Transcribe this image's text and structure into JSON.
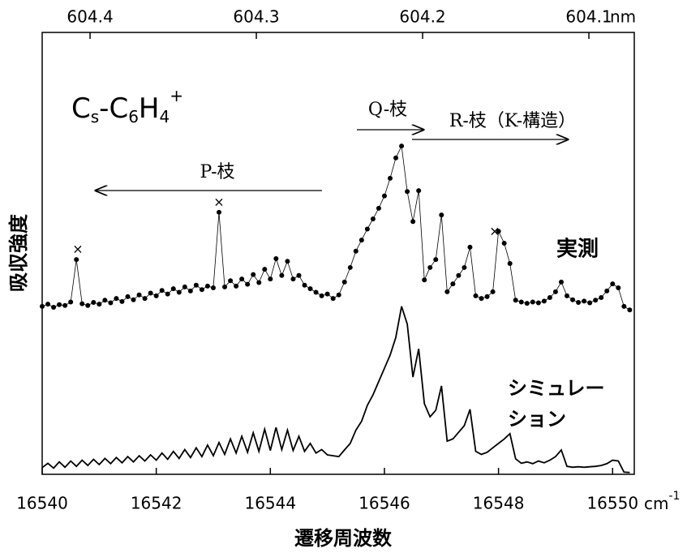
{
  "chart_data": {
    "type": "line",
    "species": [
      "C",
      "s",
      "-C",
      "6",
      "H",
      "4",
      "+"
    ],
    "x_label": "遷移周波数",
    "x_unit": "cm",
    "x_unit_sup": "-1",
    "x2_unit": "nm",
    "y_label": "吸収強度",
    "annotations": [
      "P-枝",
      "Q-枝",
      "R-枝（K-構造）",
      "実測",
      "シミュレー",
      "ション",
      "×"
    ],
    "xlim": [
      16540,
      16550.38
    ],
    "xticks": [
      16540,
      16542,
      16544,
      16546,
      16548,
      16550
    ],
    "x2lim": [
      604.4288,
      604.0727
    ],
    "x2ticks": [
      604.4,
      604.3,
      604.2,
      604.1
    ],
    "ylim": [
      0,
      100
    ],
    "x": [
      16540.0,
      16540.1,
      16540.2,
      16540.3,
      16540.4,
      16540.5,
      16540.6,
      16540.7,
      16540.8,
      16540.9,
      16541.0,
      16541.1,
      16541.2,
      16541.3,
      16541.4,
      16541.5,
      16541.6,
      16541.7,
      16541.8,
      16541.9,
      16542.0,
      16542.1,
      16542.2,
      16542.3,
      16542.4,
      16542.5,
      16542.6,
      16542.7,
      16542.8,
      16542.9,
      16543.0,
      16543.1,
      16543.2,
      16543.3,
      16543.4,
      16543.5,
      16543.6,
      16543.7,
      16543.8,
      16543.9,
      16544.0,
      16544.1,
      16544.2,
      16544.3,
      16544.4,
      16544.5,
      16544.6,
      16544.7,
      16544.8,
      16544.9,
      16545.0,
      16545.1,
      16545.2,
      16545.3,
      16545.4,
      16545.5,
      16545.6,
      16545.7,
      16545.8,
      16545.9,
      16546.0,
      16546.1,
      16546.2,
      16546.3,
      16546.4,
      16546.5,
      16546.6,
      16546.7,
      16546.8,
      16546.9,
      16547.0,
      16547.1,
      16547.2,
      16547.3,
      16547.4,
      16547.5,
      16547.6,
      16547.7,
      16547.8,
      16547.9,
      16548.0,
      16548.1,
      16548.2,
      16548.3,
      16548.4,
      16548.5,
      16548.6,
      16548.7,
      16548.8,
      16548.9,
      16549.0,
      16549.1,
      16549.2,
      16549.3,
      16549.4,
      16549.5,
      16549.6,
      16549.7,
      16549.8,
      16549.9,
      16550.0,
      16550.1,
      16550.2,
      16550.3
    ],
    "series": [
      {
        "color": "#000",
        "markers": true,
        "values": [
          38,
          38.5,
          37.8,
          38.4,
          38.2,
          39,
          48.6,
          38.6,
          38.2,
          38.9,
          38.5,
          39.4,
          38.8,
          39.8,
          39.1,
          40.2,
          39.5,
          40.6,
          39.8,
          41,
          40.4,
          41.6,
          40.8,
          42,
          41.2,
          42.4,
          41.5,
          42.8,
          41.8,
          42.6,
          42.2,
          59.3,
          42.4,
          43.8,
          42.6,
          44.2,
          43,
          45.2,
          43.4,
          46.4,
          44.2,
          48.8,
          45,
          48.2,
          44.2,
          45,
          42.8,
          42,
          41.2,
          40.4,
          40.8,
          39.8,
          40.6,
          43.5,
          46.8,
          50.5,
          53,
          55.5,
          57.8,
          60.2,
          63,
          67,
          71.6,
          74.3,
          64,
          57.2,
          64.2,
          44,
          46.8,
          48.6,
          58.7,
          41.3,
          43.1,
          45,
          46.8,
          51.4,
          40.4,
          39.8,
          40.2,
          41.3,
          55,
          52.3,
          47.7,
          39.4,
          39,
          38.7,
          39,
          38.8,
          39.2,
          40,
          41.3,
          43.5,
          40.4,
          39.5,
          38.9,
          39.2,
          38.8,
          39.4,
          40,
          41.5,
          43.1,
          42.2,
          38,
          37.2
        ]
      },
      {
        "color": "#000",
        "markers": false,
        "values": [
          1.5,
          2.5,
          1.4,
          2.8,
          1.6,
          3,
          1.8,
          3.2,
          2,
          3.4,
          2.2,
          3.6,
          2.4,
          3.8,
          2.6,
          4,
          2.8,
          4.2,
          3,
          4.4,
          3.2,
          4.8,
          3.4,
          5.2,
          3.6,
          5.6,
          3.8,
          6,
          4,
          6.6,
          4.2,
          7.2,
          4.5,
          8,
          4.8,
          8.6,
          5,
          9.4,
          5.2,
          10.2,
          5.4,
          10.6,
          5.6,
          10,
          5.4,
          8.6,
          5.2,
          7,
          4.8,
          5.6,
          4.4,
          4.2,
          4,
          5.5,
          7,
          10,
          12,
          15.6,
          18,
          21,
          24,
          27,
          31,
          38,
          34,
          22,
          28.4,
          16,
          13,
          14.5,
          20,
          7.5,
          8,
          9.5,
          11,
          14.7,
          5.2,
          4.5,
          5,
          6,
          7,
          8,
          9.2,
          3.5,
          2.5,
          2.8,
          2.4,
          3,
          2.6,
          3.2,
          4,
          5.5,
          1.8,
          1.6,
          1.7,
          1.6,
          1.7,
          1.8,
          2,
          2.4,
          3.2,
          3,
          0.5,
          0.4
        ]
      }
    ]
  }
}
